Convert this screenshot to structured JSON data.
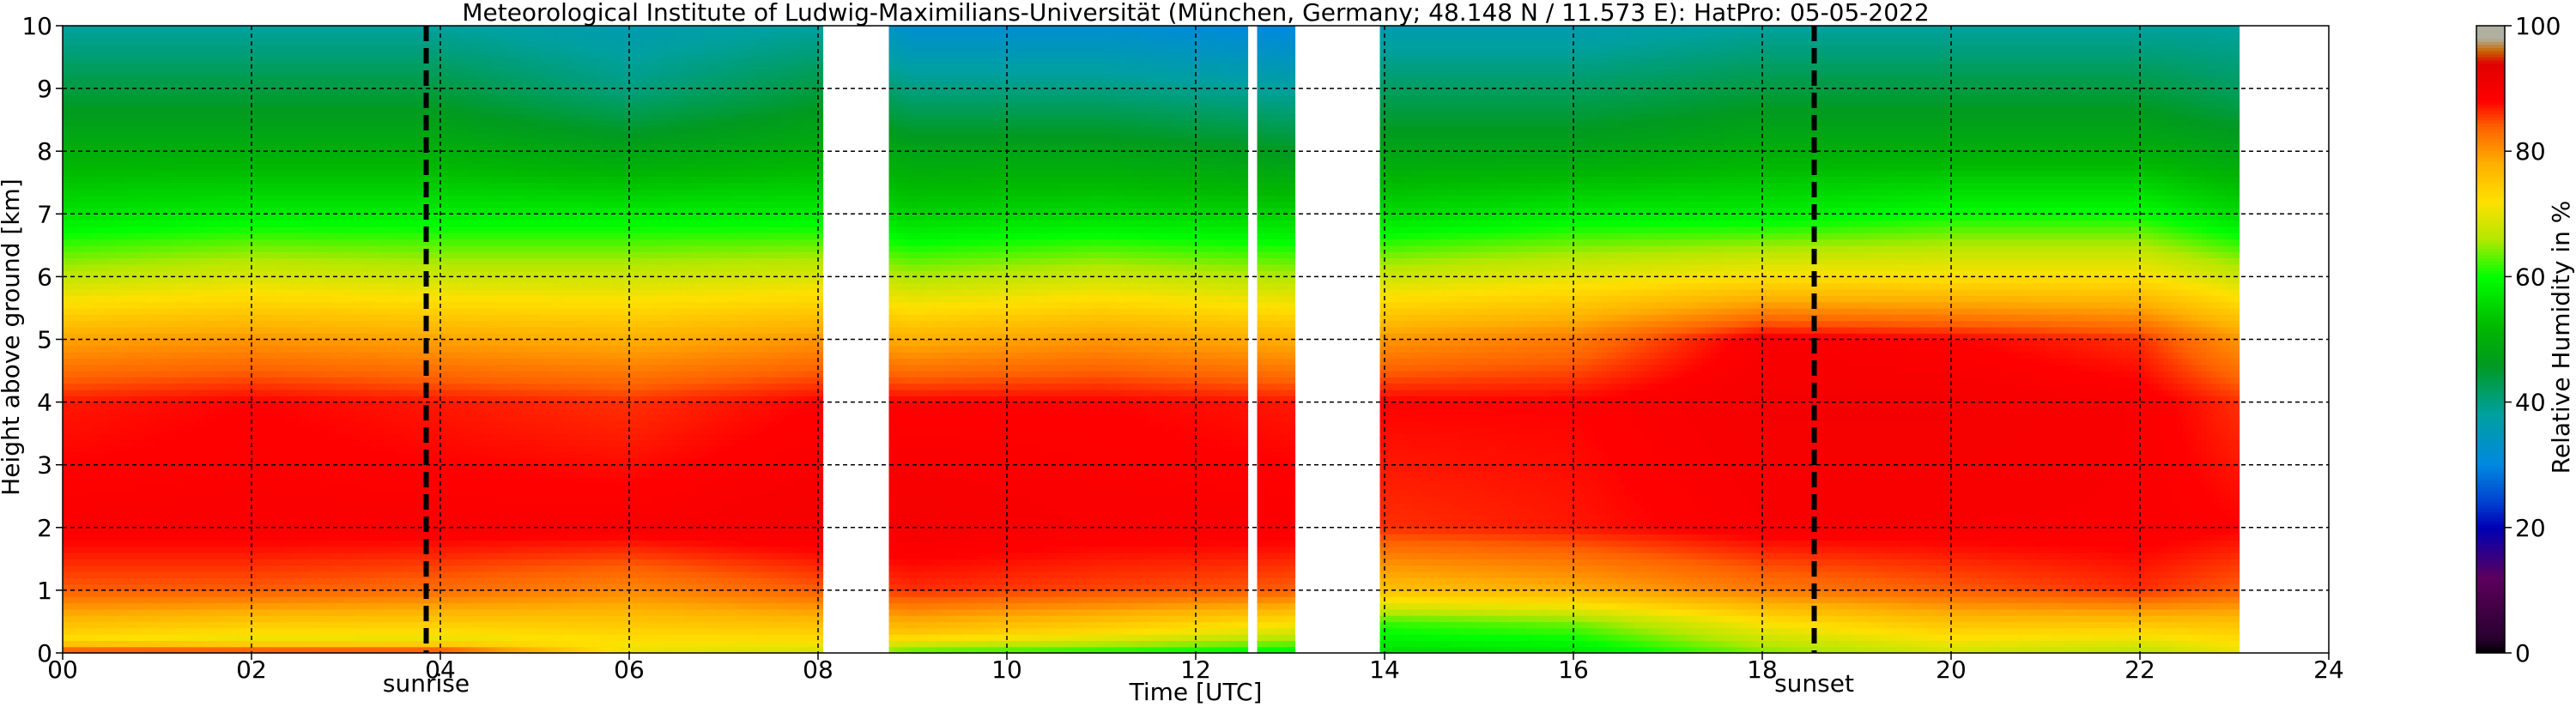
{
  "chart_data": {
    "type": "heatmap",
    "title": "Meteorological Institute of Ludwig-Maximilians-Universität (München, Germany; 48.148 N / 11.573 E):    HatPro: 05-05-2022",
    "xlabel": "Time [UTC]",
    "ylabel": "Height above ground [km]",
    "xlim": [
      0,
      24
    ],
    "ylim": [
      0,
      10
    ],
    "x_ticks": [
      "00",
      "02",
      "04",
      "06",
      "08",
      "10",
      "12",
      "14",
      "16",
      "18",
      "20",
      "22",
      "24"
    ],
    "y_ticks": [
      "0",
      "1",
      "2",
      "3",
      "4",
      "5",
      "6",
      "7",
      "8",
      "9",
      "10"
    ],
    "grid": true,
    "data_available_hours": [
      [
        0.0,
        8.05
      ],
      [
        8.75,
        12.55
      ],
      [
        12.65,
        13.05
      ],
      [
        13.95,
        23.05
      ]
    ],
    "events": [
      {
        "label": "sunrise",
        "hour": 3.85
      },
      {
        "label": "sunset",
        "hour": 18.55
      }
    ],
    "colorbar": {
      "label": "Relative Humidity in %",
      "range": [
        0,
        100
      ],
      "ticks": [
        "0",
        "20",
        "40",
        "60",
        "80",
        "100"
      ],
      "stops": [
        {
          "value": 0,
          "color": "#000000"
        },
        {
          "value": 2.5,
          "color": "#2a0030"
        },
        {
          "value": 12,
          "color": "#5c005c"
        },
        {
          "value": 20,
          "color": "#0000b4"
        },
        {
          "value": 24,
          "color": "#0040d0"
        },
        {
          "value": 30,
          "color": "#0088e0"
        },
        {
          "value": 38,
          "color": "#00a0a0"
        },
        {
          "value": 46,
          "color": "#009a20"
        },
        {
          "value": 52,
          "color": "#00b800"
        },
        {
          "value": 60,
          "color": "#00ff00"
        },
        {
          "value": 66,
          "color": "#b4e800"
        },
        {
          "value": 72,
          "color": "#ffe000"
        },
        {
          "value": 78,
          "color": "#ffb000"
        },
        {
          "value": 84,
          "color": "#ff6000"
        },
        {
          "value": 88,
          "color": "#ff0000"
        },
        {
          "value": 94,
          "color": "#e00000"
        },
        {
          "value": 96,
          "color": "#c86400"
        },
        {
          "value": 98,
          "color": "#b0b0a0"
        },
        {
          "value": 100,
          "color": "#b0b0a0"
        }
      ]
    },
    "humidity_profiles": [
      {
        "hour": 0.0,
        "heights_km": [
          0,
          0.2,
          1,
          2,
          4,
          5,
          6,
          7,
          8,
          9,
          10
        ],
        "rh": [
          87,
          72,
          84,
          89,
          87,
          79,
          67,
          57,
          50,
          44,
          38
        ]
      },
      {
        "hour": 2.0,
        "heights_km": [
          0,
          0.2,
          1,
          2,
          4,
          5,
          6,
          7,
          8,
          9,
          10
        ],
        "rh": [
          88,
          70,
          84,
          89,
          88,
          80,
          69,
          58,
          50,
          44,
          38
        ]
      },
      {
        "hour": 4.0,
        "heights_km": [
          0,
          0.2,
          1,
          2,
          4,
          5,
          6,
          7,
          8,
          9,
          10
        ],
        "rh": [
          88,
          70,
          83,
          89,
          87,
          79,
          68,
          58,
          50,
          44,
          38
        ]
      },
      {
        "hour": 6.0,
        "heights_km": [
          0,
          0.2,
          1,
          2,
          4,
          5,
          6,
          7,
          8,
          9,
          10
        ],
        "rh": [
          70,
          72,
          81,
          89,
          86,
          78,
          68,
          58,
          48,
          40,
          36
        ]
      },
      {
        "hour": 8.0,
        "heights_km": [
          0,
          0.2,
          1,
          2,
          4,
          5,
          6,
          7,
          8,
          9,
          10
        ],
        "rh": [
          68,
          72,
          84,
          90,
          88,
          80,
          69,
          58,
          50,
          44,
          38
        ]
      },
      {
        "hour": 9.0,
        "heights_km": [
          0,
          0.3,
          1,
          2,
          4,
          5,
          6,
          7,
          8,
          9,
          10
        ],
        "rh": [
          62,
          75,
          86,
          90,
          88,
          78,
          66,
          55,
          48,
          40,
          32
        ]
      },
      {
        "hour": 11.0,
        "heights_km": [
          0,
          0.3,
          1,
          2,
          4,
          5,
          6,
          7,
          8,
          9,
          10
        ],
        "rh": [
          60,
          72,
          85,
          89,
          88,
          80,
          68,
          56,
          48,
          40,
          32
        ]
      },
      {
        "hour": 13.0,
        "heights_km": [
          0,
          0.3,
          1,
          2,
          4,
          5,
          6,
          7,
          8,
          9,
          10
        ],
        "rh": [
          58,
          68,
          84,
          89,
          87,
          78,
          66,
          55,
          46,
          38,
          30
        ]
      },
      {
        "hour": 14.0,
        "heights_km": [
          0,
          0.5,
          1,
          2,
          4,
          5,
          6,
          7,
          8,
          9,
          10
        ],
        "rh": [
          56,
          62,
          76,
          86,
          88,
          80,
          68,
          56,
          48,
          42,
          36
        ]
      },
      {
        "hour": 16.0,
        "heights_km": [
          0,
          0.5,
          1,
          2,
          4,
          5,
          6,
          7,
          8,
          9,
          10
        ],
        "rh": [
          57,
          64,
          78,
          87,
          88,
          82,
          70,
          58,
          48,
          42,
          36
        ]
      },
      {
        "hour": 18.0,
        "heights_km": [
          0,
          0.5,
          1,
          2,
          4,
          5,
          6,
          7,
          8,
          9,
          10
        ],
        "rh": [
          64,
          72,
          82,
          89,
          90,
          89,
          72,
          58,
          50,
          44,
          38
        ]
      },
      {
        "hour": 20.0,
        "heights_km": [
          0,
          0.5,
          1,
          2,
          4,
          5,
          6,
          7,
          8,
          9,
          10
        ],
        "rh": [
          68,
          76,
          84,
          89,
          90,
          88,
          72,
          60,
          50,
          44,
          38
        ]
      },
      {
        "hour": 22.0,
        "heights_km": [
          0,
          0.5,
          1,
          2,
          4,
          5,
          6,
          7,
          8,
          9,
          10
        ],
        "rh": [
          66,
          76,
          86,
          89,
          89,
          86,
          72,
          60,
          50,
          44,
          38
        ]
      },
      {
        "hour": 23.05,
        "heights_km": [
          0,
          0.5,
          1,
          2,
          4,
          5,
          6,
          7,
          8,
          9,
          10
        ],
        "rh": [
          70,
          76,
          84,
          88,
          86,
          80,
          68,
          56,
          48,
          42,
          38
        ]
      }
    ]
  }
}
